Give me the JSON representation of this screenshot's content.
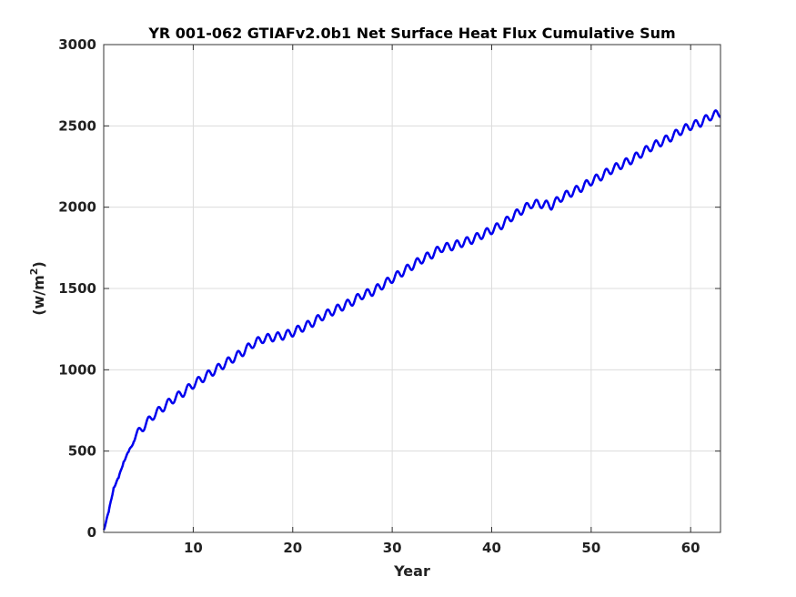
{
  "chart_data": {
    "type": "line",
    "title": "YR 001-062 GTIAFv2.0b1 Net Surface Heat Flux  Cumulative Sum",
    "xlabel": "Year",
    "ylabel_base": "(w/m",
    "ylabel_sup": "2",
    "ylabel_end": ")",
    "xlim": [
      1,
      63
    ],
    "ylim": [
      0,
      3000
    ],
    "xticks": [
      10,
      20,
      30,
      40,
      50,
      60
    ],
    "yticks": [
      0,
      500,
      1000,
      1500,
      2000,
      2500,
      3000
    ],
    "grid": true,
    "series": [
      {
        "color": "#0000ee",
        "x": [
          1,
          1.5,
          2,
          2.5,
          3,
          3.5,
          4,
          5,
          6,
          7,
          8,
          9,
          10,
          11,
          12,
          13,
          14,
          15,
          16,
          17,
          18,
          19,
          20,
          21,
          22,
          23,
          24,
          25,
          26,
          27,
          28,
          29,
          30,
          31,
          32,
          33,
          34,
          35,
          36,
          37,
          38,
          39,
          40,
          41,
          42,
          43,
          44,
          45,
          46,
          47,
          48,
          49,
          50,
          51,
          52,
          53,
          54,
          55,
          56,
          57,
          58,
          59,
          60,
          61,
          62,
          63
        ],
        "y": [
          40,
          100,
          300,
          310,
          460,
          470,
          580,
          650,
          720,
          770,
          820,
          860,
          910,
          950,
          990,
          1030,
          1070,
          1110,
          1160,
          1190,
          1200,
          1210,
          1230,
          1260,
          1290,
          1330,
          1360,
          1390,
          1420,
          1460,
          1480,
          1520,
          1560,
          1600,
          1640,
          1680,
          1710,
          1750,
          1760,
          1780,
          1800,
          1830,
          1860,
          1890,
          1940,
          1980,
          2020,
          2020,
          2010,
          2060,
          2090,
          2120,
          2160,
          2190,
          2230,
          2260,
          2290,
          2330,
          2370,
          2400,
          2430,
          2470,
          2500,
          2520,
          2560,
          2580
        ]
      }
    ],
    "seasonal_amplitude": 25
  }
}
